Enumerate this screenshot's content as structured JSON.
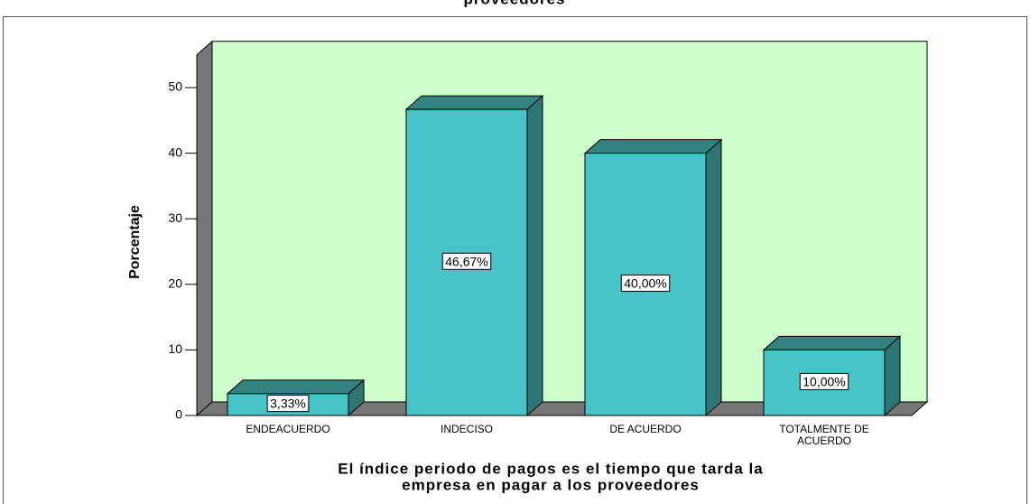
{
  "chart_data": {
    "type": "bar3d",
    "title": "proveedores",
    "y_label": "Porcentaje",
    "x_label": [
      "El índice periodo de pagos es el tiempo que tarda la",
      "empresa  en pagar a los proveedores"
    ],
    "categories": [
      "ENDEACUERDO",
      "INDECISO",
      "DE ACUERDO",
      "TOTALMENTE DE ACUERDO"
    ],
    "values": [
      3.33,
      46.67,
      40,
      10
    ],
    "value_labels": [
      "3,33%",
      "46,67%",
      "40,00%",
      "10,00%"
    ],
    "color": "#48c3c8",
    "wall_color": "#ccffcc",
    "ylim": [
      0,
      55
    ],
    "yticks": [
      0,
      10,
      20,
      30,
      40,
      50
    ]
  }
}
